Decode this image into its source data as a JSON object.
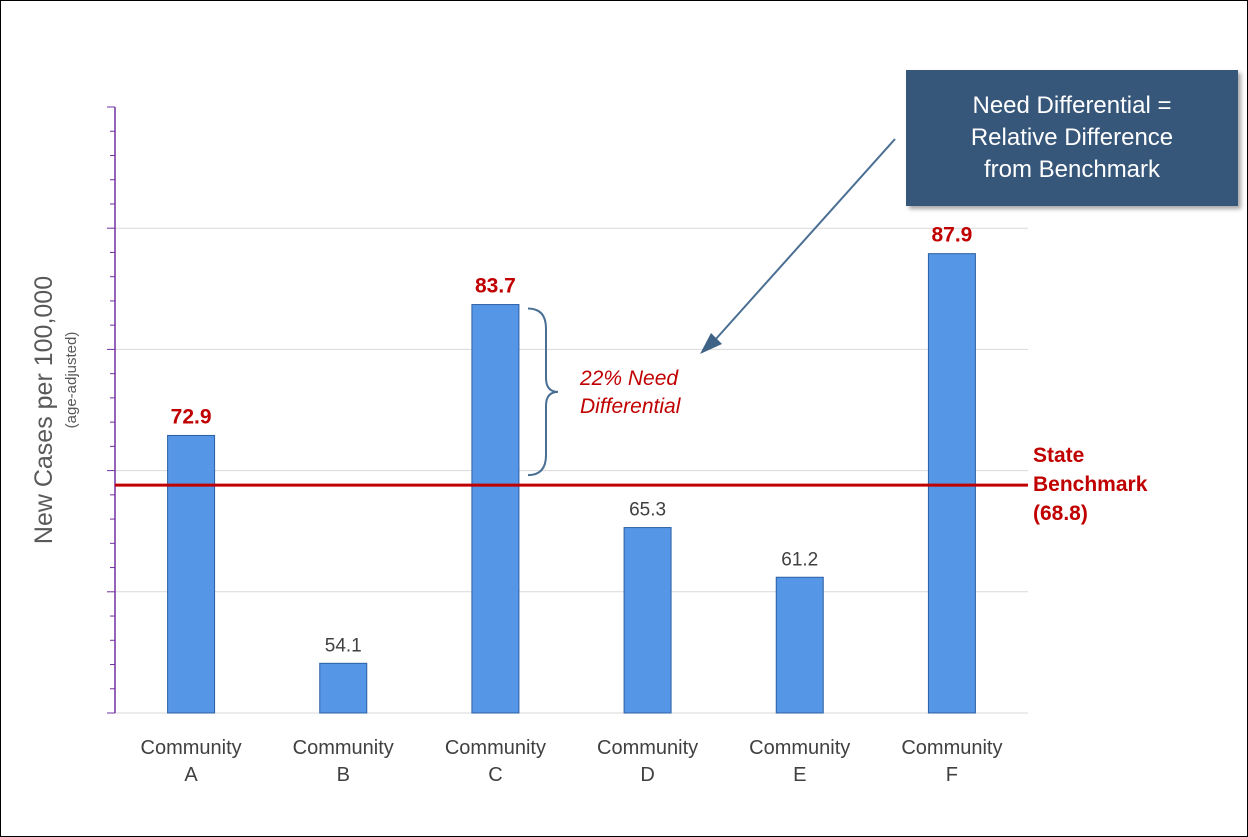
{
  "chart_data": {
    "type": "bar",
    "categories": [
      [
        "Community",
        "A"
      ],
      [
        "Community",
        "B"
      ],
      [
        "Community",
        "C"
      ],
      [
        "Community",
        "D"
      ],
      [
        "Community",
        "E"
      ],
      [
        "Community",
        "F"
      ]
    ],
    "values": [
      72.9,
      54.1,
      83.7,
      65.3,
      61.2,
      87.9
    ],
    "value_labels": [
      "72.9",
      "54.1",
      "83.7",
      "65.3",
      "61.2",
      "87.9"
    ],
    "highlighted": [
      true,
      false,
      true,
      false,
      false,
      true
    ],
    "ylabel": "New Cases per 100,000",
    "ylabel_sub": "(age-adjusted)",
    "ylim": [
      50,
      100
    ],
    "grid": true,
    "benchmark": {
      "value": 68.8,
      "label": [
        "State",
        "Benchmark",
        "(68.8)"
      ]
    },
    "brace_annotation": [
      "22% Need",
      "Differential"
    ],
    "callout": [
      "Need Differential =",
      "Relative Difference",
      "from Benchmark"
    ]
  },
  "colors": {
    "bar_fill": "#5596e6",
    "bar_stroke": "#2b5fa3",
    "benchmark": "#c00000",
    "grid": "#d9d9d9",
    "y_axis": "#7030a0",
    "callout_bg": "#36567a",
    "text": "#404040"
  }
}
